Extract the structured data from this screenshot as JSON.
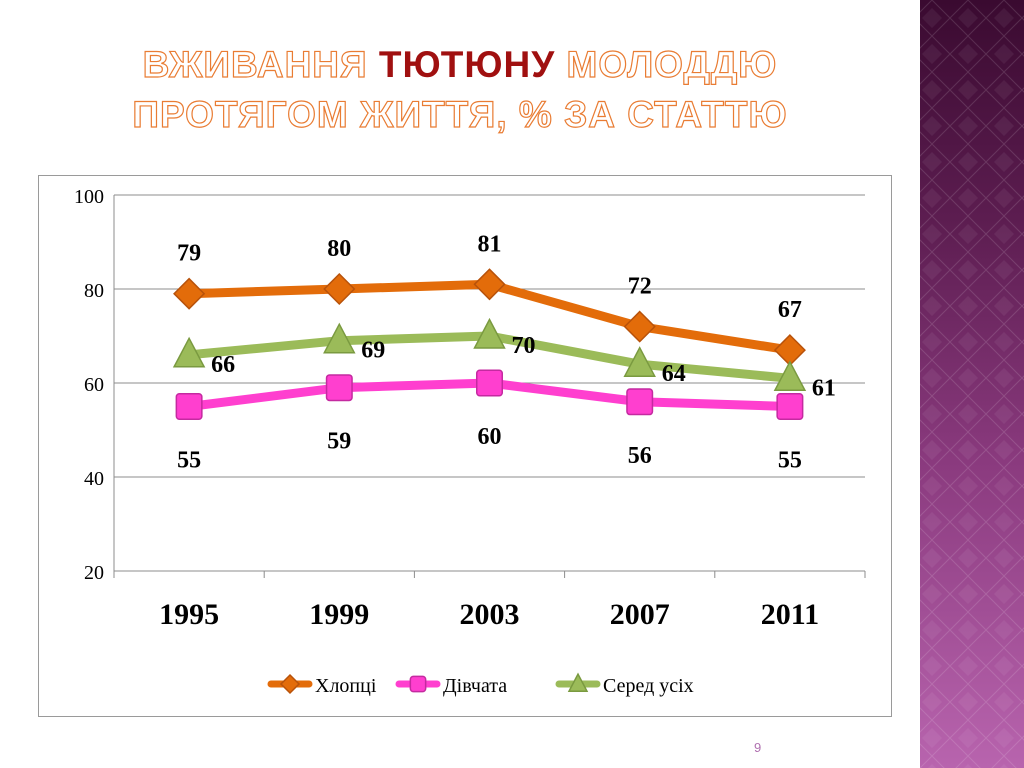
{
  "slide": {
    "title_part1": "ВЖИВАННЯ",
    "title_accent": "ТЮТЮНУ",
    "title_part2": "МОЛОДДЮ",
    "title_line2": "ПРОТЯГОМ ЖИТТЯ, % ЗА СТАТТЮ",
    "page_number": "9"
  },
  "colors": {
    "boys": "#e36c0a",
    "girls": "#ff3fcf",
    "all": "#9bbb59",
    "title_outline": "#e97c33",
    "title_accent": "#a01010",
    "panel": "#6a2460"
  },
  "chart_data": {
    "type": "line",
    "title": "ВЖИВАННЯ ТЮТЮНУ МОЛОДДЮ ПРОТЯГОМ ЖИТТЯ, % ЗА СТАТТЮ",
    "categories": [
      "1995",
      "1999",
      "2003",
      "2007",
      "2011"
    ],
    "series": [
      {
        "name": "Хлопці",
        "values": [
          79,
          80,
          81,
          72,
          67
        ],
        "marker": "diamond",
        "color": "#e36c0a",
        "label_position": "above"
      },
      {
        "name": "Дівчата",
        "values": [
          55,
          59,
          60,
          56,
          55
        ],
        "marker": "square",
        "color": "#ff3fcf",
        "label_position": "below"
      },
      {
        "name": "Серед усіх",
        "values": [
          66,
          69,
          70,
          64,
          61
        ],
        "marker": "triangle",
        "color": "#9bbb59",
        "label_position": "right"
      }
    ],
    "ylim": [
      20,
      100
    ],
    "yticks": [
      "20",
      "40",
      "60",
      "80",
      "100"
    ],
    "grid": true,
    "legend": "bottom",
    "xlabel": "",
    "ylabel": ""
  }
}
